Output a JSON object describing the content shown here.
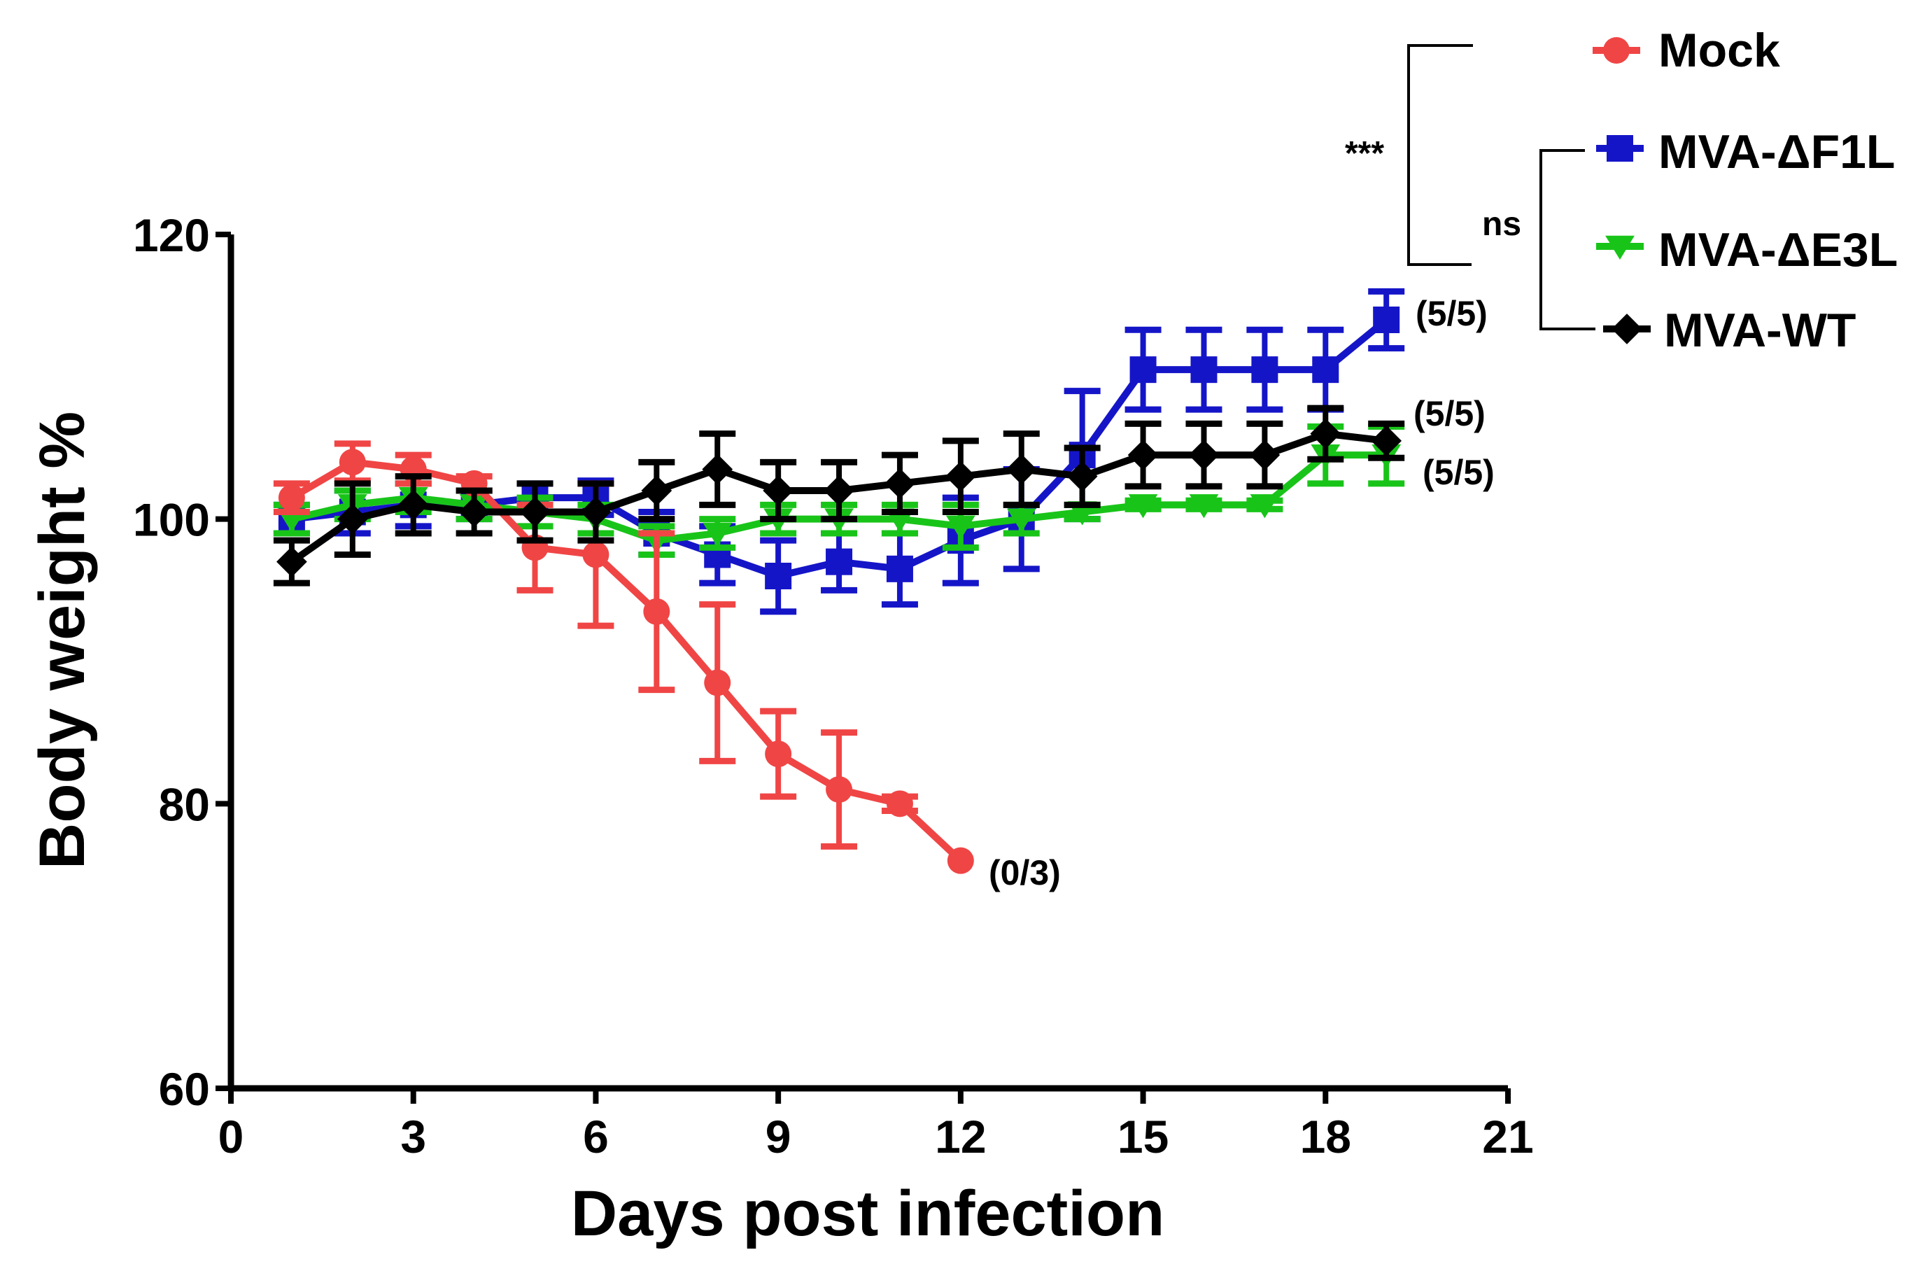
{
  "chart_data": {
    "type": "line",
    "xlabel": "Days post infection",
    "ylabel": "Body weight %",
    "xlim": [
      0,
      21
    ],
    "ylim": [
      60,
      120
    ],
    "xticks": [
      0,
      3,
      6,
      9,
      12,
      15,
      18,
      21
    ],
    "yticks": [
      60,
      80,
      100,
      120
    ],
    "grid": false,
    "legend_position": "top-right",
    "series": [
      {
        "name": "Mock",
        "color": "#f04545",
        "marker": "circle",
        "points": [
          {
            "x": 1,
            "y": 101.5,
            "err": 1.0
          },
          {
            "x": 2,
            "y": 104,
            "err": 1.3
          },
          {
            "x": 3,
            "y": 103.5,
            "err": 1.0
          },
          {
            "x": 4,
            "y": 102.5,
            "err": 0.5
          },
          {
            "x": 5,
            "y": 98,
            "err": 3.0
          },
          {
            "x": 6,
            "y": 97.5,
            "err": 5.0
          },
          {
            "x": 7,
            "y": 93.5,
            "err": 5.5
          },
          {
            "x": 8,
            "y": 88.5,
            "err": 5.5
          },
          {
            "x": 9,
            "y": 83.5,
            "err": 3.0
          },
          {
            "x": 10,
            "y": 81,
            "err": 4.0
          },
          {
            "x": 11,
            "y": 80,
            "err": 0.5
          },
          {
            "x": 12,
            "y": 76,
            "err": 0
          }
        ],
        "end_label": "(0/3)"
      },
      {
        "name": "MVA-ΔF1L",
        "color": "#1515c8",
        "marker": "square",
        "points": [
          {
            "x": 1,
            "y": 100,
            "err": 1.0
          },
          {
            "x": 2,
            "y": 100.5,
            "err": 1.5
          },
          {
            "x": 3,
            "y": 101,
            "err": 1.5
          },
          {
            "x": 4,
            "y": 101,
            "err": 1.0
          },
          {
            "x": 5,
            "y": 101.5,
            "err": 1.0
          },
          {
            "x": 6,
            "y": 101.5,
            "err": 1.2
          },
          {
            "x": 7,
            "y": 99,
            "err": 1.5
          },
          {
            "x": 8,
            "y": 97.5,
            "err": 2.0
          },
          {
            "x": 9,
            "y": 96,
            "err": 2.5
          },
          {
            "x": 10,
            "y": 97,
            "err": 2.0
          },
          {
            "x": 11,
            "y": 96.5,
            "err": 2.5
          },
          {
            "x": 12,
            "y": 98.5,
            "err": 3.0
          },
          {
            "x": 13,
            "y": 100,
            "err": 3.5
          },
          {
            "x": 14,
            "y": 104.5,
            "err": 4.5
          },
          {
            "x": 15,
            "y": 110.5,
            "err": 2.8
          },
          {
            "x": 16,
            "y": 110.5,
            "err": 2.8
          },
          {
            "x": 17,
            "y": 110.5,
            "err": 2.8
          },
          {
            "x": 18,
            "y": 110.5,
            "err": 2.8
          },
          {
            "x": 19,
            "y": 114,
            "err": 2.0
          }
        ],
        "end_label": "(5/5)"
      },
      {
        "name": "MVA-ΔE3L",
        "color": "#19c419",
        "marker": "triangle-down",
        "points": [
          {
            "x": 1,
            "y": 100,
            "err": 1.0
          },
          {
            "x": 2,
            "y": 101,
            "err": 1.0
          },
          {
            "x": 3,
            "y": 101.5,
            "err": 1.0
          },
          {
            "x": 4,
            "y": 101,
            "err": 1.0
          },
          {
            "x": 5,
            "y": 100.5,
            "err": 1.0
          },
          {
            "x": 6,
            "y": 100,
            "err": 1.0
          },
          {
            "x": 7,
            "y": 98.5,
            "err": 1.0
          },
          {
            "x": 8,
            "y": 99,
            "err": 1.0
          },
          {
            "x": 9,
            "y": 100,
            "err": 1.0
          },
          {
            "x": 10,
            "y": 100,
            "err": 1.0
          },
          {
            "x": 11,
            "y": 100,
            "err": 1.0
          },
          {
            "x": 12,
            "y": 99.5,
            "err": 1.5
          },
          {
            "x": 13,
            "y": 100,
            "err": 1.0
          },
          {
            "x": 14,
            "y": 100.5,
            "err": 0.5
          },
          {
            "x": 15,
            "y": 101,
            "err": 0.3
          },
          {
            "x": 16,
            "y": 101,
            "err": 0.3
          },
          {
            "x": 17,
            "y": 101,
            "err": 0.3
          },
          {
            "x": 18,
            "y": 104.5,
            "err": 2.0
          },
          {
            "x": 19,
            "y": 104.5,
            "err": 2.0
          }
        ],
        "end_label": "(5/5)"
      },
      {
        "name": "MVA-WT",
        "color": "#000000",
        "marker": "diamond",
        "points": [
          {
            "x": 1,
            "y": 97,
            "err": 1.5
          },
          {
            "x": 2,
            "y": 100,
            "err": 2.5
          },
          {
            "x": 3,
            "y": 101,
            "err": 2.0
          },
          {
            "x": 4,
            "y": 100.5,
            "err": 1.5
          },
          {
            "x": 5,
            "y": 100.5,
            "err": 2.0
          },
          {
            "x": 6,
            "y": 100.5,
            "err": 2.0
          },
          {
            "x": 7,
            "y": 102,
            "err": 2.0
          },
          {
            "x": 8,
            "y": 103.5,
            "err": 2.5
          },
          {
            "x": 9,
            "y": 102,
            "err": 2.0
          },
          {
            "x": 10,
            "y": 102,
            "err": 2.0
          },
          {
            "x": 11,
            "y": 102.5,
            "err": 2.0
          },
          {
            "x": 12,
            "y": 103,
            "err": 2.5
          },
          {
            "x": 13,
            "y": 103.5,
            "err": 2.5
          },
          {
            "x": 14,
            "y": 103,
            "err": 2.0
          },
          {
            "x": 15,
            "y": 104.5,
            "err": 2.2
          },
          {
            "x": 16,
            "y": 104.5,
            "err": 2.2
          },
          {
            "x": 17,
            "y": 104.5,
            "err": 2.2
          },
          {
            "x": 18,
            "y": 106,
            "err": 1.8
          },
          {
            "x": 19,
            "y": 105.5,
            "err": 1.2
          }
        ],
        "end_label": "(5/5)"
      }
    ],
    "significance": [
      {
        "label": "***",
        "comparison": "Mock vs vaccinated groups"
      },
      {
        "label": "ns",
        "comparison": "MVA-ΔF1L vs MVA-ΔE3L vs MVA-WT"
      }
    ]
  }
}
